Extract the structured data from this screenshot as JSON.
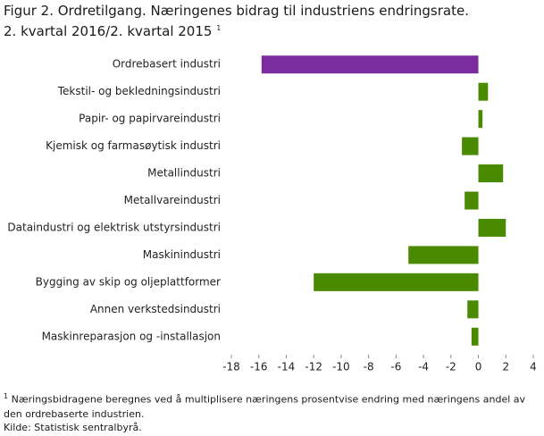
{
  "chart_data": {
    "type": "barh",
    "title": "Figur 2. Ordretilgang. Næringenes bidrag til industriens endringsrate.",
    "subtitle": "2. kvartal 2016/2. kvartal 2015",
    "subtitle_note": "1",
    "categories": [
      "Ordrebasert industri",
      "Tekstil- og bekledningsindustri",
      "Papir- og papirvareindustri",
      "Kjemisk og farmasøytisk industri",
      "Metallindustri",
      "Metallvareindustri",
      "Dataindustri og elektrisk utstyrsindustri",
      "Maskinindustri",
      "Bygging av skip og oljeplattformer",
      "Annen verkstedsindustri",
      "Maskinreparasjon og -installasjon"
    ],
    "values": [
      -15.8,
      0.7,
      0.3,
      -1.2,
      1.8,
      -1.0,
      2.0,
      -5.1,
      -12.0,
      -0.8,
      -0.5
    ],
    "colors": [
      "#7b2c9e",
      "#4a8a00",
      "#4a8a00",
      "#4a8a00",
      "#4a8a00",
      "#4a8a00",
      "#4a8a00",
      "#4a8a00",
      "#4a8a00",
      "#4a8a00",
      "#4a8a00"
    ],
    "xlim": [
      -18,
      4
    ],
    "xticks": [
      -18,
      -16,
      -14,
      -12,
      -10,
      -8,
      -6,
      -4,
      -2,
      0,
      2,
      4
    ],
    "footnote_marker": "1",
    "footnote": "Næringsbidragene beregnes ved å multiplisere næringens prosentvise endring med næringens andel av den ordrebaserte industrien.",
    "source": "Kilde: Statistisk sentralbyrå."
  }
}
